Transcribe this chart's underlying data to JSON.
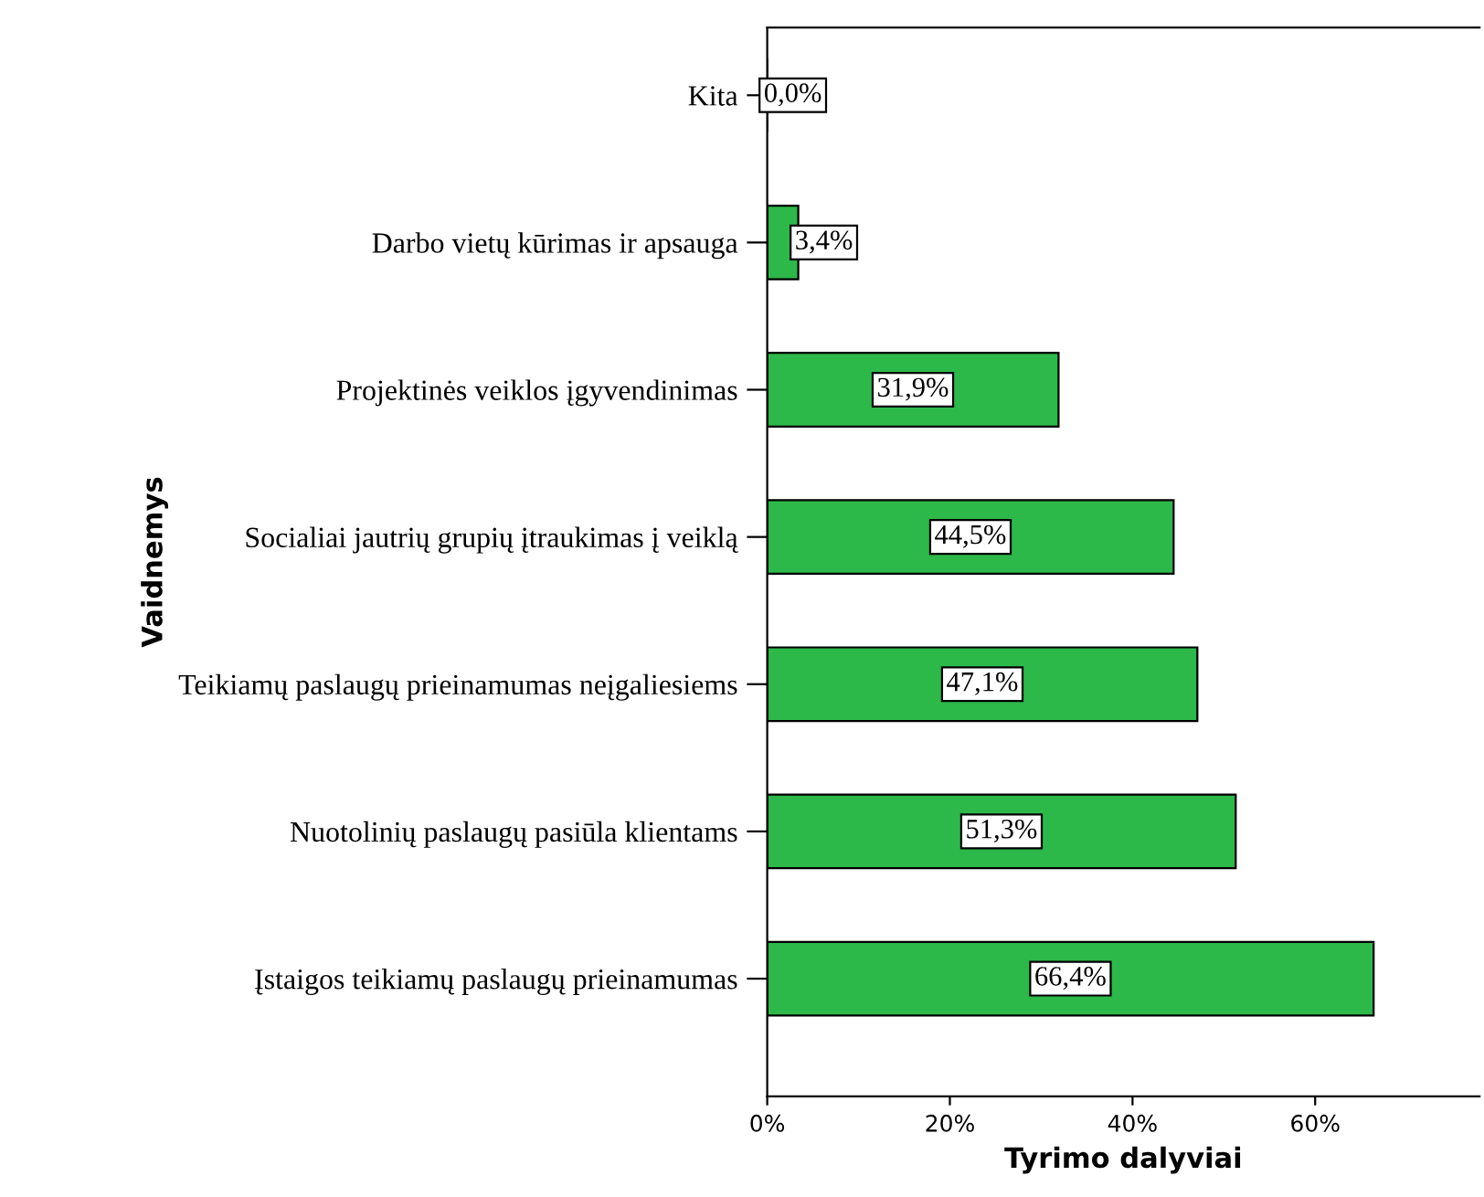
{
  "chart_data": {
    "type": "bar",
    "orientation": "horizontal",
    "xlabel": "Tyrimo dalyviai",
    "ylabel": "Vaidnemys",
    "categories": [
      "Kita",
      "Darbo vietų kūrimas ir apsauga",
      "Projektinės veiklos įgyvendinimas",
      "Socialiai jautrių grupių įtraukimas į veiklą",
      "Teikiamų paslaugų prieinamumas neįgaliesiems",
      "Nuotolinių paslaugų pasiūla klientams",
      "Įstaigos teikiamų paslaugų prieinamumas"
    ],
    "values": [
      0.0,
      3.4,
      31.9,
      44.5,
      47.1,
      51.3,
      66.4
    ],
    "value_labels": [
      "0,0%",
      "3,4%",
      "31,9%",
      "44,5%",
      "47,1%",
      "51,3%",
      "66,4%"
    ],
    "color": "#2db84a",
    "xlim": [
      0,
      78
    ],
    "xticks": [
      {
        "value": 0,
        "label": "0%"
      },
      {
        "value": 20,
        "label": "20%"
      },
      {
        "value": 40,
        "label": "40%"
      },
      {
        "value": 60,
        "label": "60%"
      }
    ],
    "grid": false
  }
}
